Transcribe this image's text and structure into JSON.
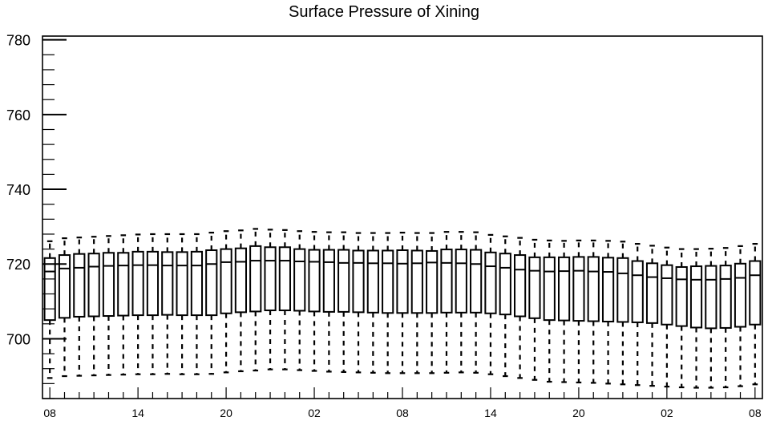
{
  "chart_data": {
    "type": "boxplot",
    "title": "Surface Pressure of Xining",
    "xlabel": "",
    "ylabel": "",
    "ylim": [
      684,
      781
    ],
    "y_ticks": [
      700,
      720,
      740,
      760,
      780
    ],
    "x_tick_labels": [
      "08",
      "14",
      "20",
      "02",
      "08",
      "14",
      "20",
      "02",
      "08"
    ],
    "x_tick_boxes": [
      1,
      7,
      13,
      19,
      25,
      31,
      37,
      43,
      49
    ],
    "box_count": 49,
    "grid": false,
    "boxes": {
      "q1": [
        705.0,
        705.6,
        705.9,
        706.0,
        706.1,
        706.2,
        706.3,
        706.3,
        706.4,
        706.3,
        706.3,
        706.3,
        706.8,
        707.1,
        707.3,
        707.6,
        707.6,
        707.5,
        707.3,
        707.2,
        707.2,
        707.1,
        707.0,
        706.9,
        706.9,
        706.9,
        706.9,
        707.0,
        707.0,
        707.0,
        706.8,
        706.5,
        706.0,
        705.5,
        705.0,
        704.9,
        704.8,
        704.7,
        704.6,
        704.5,
        704.4,
        704.2,
        703.8,
        703.4,
        703.0,
        702.8,
        702.9,
        703.2,
        703.8
      ],
      "median": [
        718.0,
        718.8,
        719.0,
        719.3,
        719.5,
        719.6,
        719.7,
        719.7,
        719.6,
        719.6,
        719.6,
        720.0,
        720.5,
        720.6,
        720.9,
        720.9,
        720.9,
        720.7,
        720.6,
        720.5,
        720.3,
        720.3,
        720.2,
        720.2,
        720.1,
        720.2,
        720.4,
        720.3,
        720.2,
        720.0,
        719.4,
        719.0,
        718.5,
        718.2,
        718.0,
        718.1,
        718.2,
        718.0,
        717.9,
        717.5,
        717.0,
        716.5,
        716.2,
        715.9,
        715.8,
        715.8,
        716.0,
        716.3,
        717.0
      ],
      "q3": [
        721.6,
        722.4,
        722.7,
        722.8,
        723.0,
        723.0,
        723.3,
        723.3,
        723.2,
        723.2,
        723.3,
        723.7,
        724.0,
        724.2,
        724.8,
        724.5,
        724.5,
        724.0,
        723.8,
        723.8,
        723.8,
        723.6,
        723.6,
        723.6,
        723.7,
        723.6,
        723.5,
        723.9,
        723.9,
        723.8,
        723.1,
        722.8,
        722.4,
        721.8,
        721.8,
        721.8,
        721.9,
        721.9,
        721.7,
        721.6,
        720.8,
        720.2,
        719.7,
        719.2,
        719.4,
        719.5,
        719.6,
        720.1,
        720.8
      ],
      "whisker_low": [
        689.5,
        690.0,
        690.1,
        690.2,
        690.3,
        690.4,
        690.5,
        690.5,
        690.6,
        690.5,
        690.5,
        690.6,
        691.0,
        691.3,
        691.5,
        691.8,
        691.8,
        691.6,
        691.4,
        691.2,
        691.1,
        691.0,
        690.9,
        690.8,
        690.8,
        690.8,
        690.8,
        690.9,
        691.0,
        690.9,
        690.5,
        690.0,
        689.5,
        689.0,
        688.5,
        688.4,
        688.3,
        688.2,
        688.0,
        687.8,
        687.6,
        687.4,
        687.2,
        687.0,
        686.9,
        686.9,
        687.0,
        687.3,
        687.8
      ],
      "whisker_high": [
        726.1,
        726.9,
        727.1,
        727.3,
        727.5,
        727.7,
        727.9,
        728.0,
        728.0,
        728.0,
        728.0,
        728.4,
        728.8,
        729.0,
        729.4,
        729.2,
        729.1,
        728.8,
        728.6,
        728.5,
        728.5,
        728.3,
        728.3,
        728.3,
        728.4,
        728.3,
        728.3,
        728.6,
        728.6,
        728.5,
        727.8,
        727.4,
        727.0,
        726.5,
        726.3,
        726.2,
        726.3,
        726.3,
        726.2,
        726.0,
        725.4,
        724.9,
        724.4,
        724.0,
        724.0,
        724.1,
        724.3,
        724.8,
        725.4
      ]
    }
  }
}
